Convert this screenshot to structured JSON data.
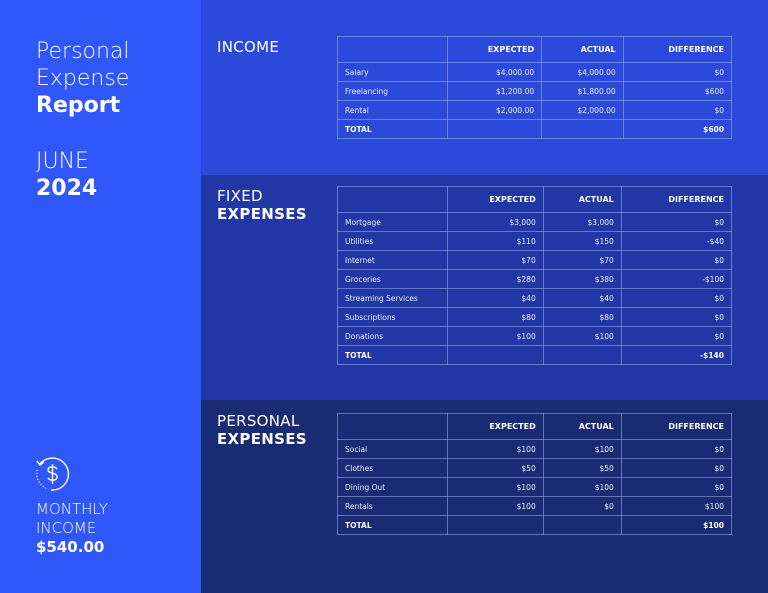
{
  "title": {
    "line1": "Personal",
    "line2": "Expense",
    "line3": "Report"
  },
  "period": {
    "month": "JUNE",
    "year": "2024"
  },
  "monthly": {
    "icon": "dollar-refresh-icon",
    "line1": "MONTHLY",
    "line2": "INCOME",
    "value": "$540.00"
  },
  "colors": {
    "left": "#3057fa",
    "income": "#2b4adc",
    "fixed": "#2137a6",
    "personal": "#182b73"
  },
  "headers": [
    "",
    "EXPECTED",
    "ACTUAL",
    "DIFFERENCE"
  ],
  "sections": [
    {
      "t1": "INCOME",
      "t2": "",
      "rows": [
        [
          "Salary",
          "$4,000.00",
          "$4,000.00",
          "$0"
        ],
        [
          "Freelancing",
          "$1,200.00",
          "$1,800.00",
          "$600"
        ],
        [
          "Rental",
          "$2,000.00",
          "$2,000.00",
          "$0"
        ],
        [
          "TOTAL",
          "",
          "",
          "$600"
        ]
      ]
    },
    {
      "t1": "FIXED",
      "t2": "EXPENSES",
      "rows": [
        [
          "Mortgage",
          "$3,000",
          "$3,000",
          "$0"
        ],
        [
          "Utilities",
          "$110",
          "$150",
          "-$40"
        ],
        [
          "Internet",
          "$70",
          "$70",
          "$0"
        ],
        [
          "Groceries",
          "$280",
          "$380",
          "-$100"
        ],
        [
          "Streaming Services",
          "$40",
          "$40",
          "$0"
        ],
        [
          "Subscriptions",
          "$80",
          "$80",
          "$0"
        ],
        [
          "Donations",
          "$100",
          "$100",
          "$0"
        ],
        [
          "TOTAL",
          "",
          "",
          "-$140"
        ]
      ]
    },
    {
      "t1": "PERSONAL",
      "t2": "EXPENSES",
      "rows": [
        [
          "Social",
          "$100",
          "$100",
          "$0"
        ],
        [
          "Clothes",
          "$50",
          "$50",
          "$0"
        ],
        [
          "Dining Out",
          "$100",
          "$100",
          "$0"
        ],
        [
          "Rentals",
          "$100",
          "$0",
          "$100"
        ],
        [
          "TOTAL",
          "",
          "",
          "$100"
        ]
      ]
    }
  ]
}
